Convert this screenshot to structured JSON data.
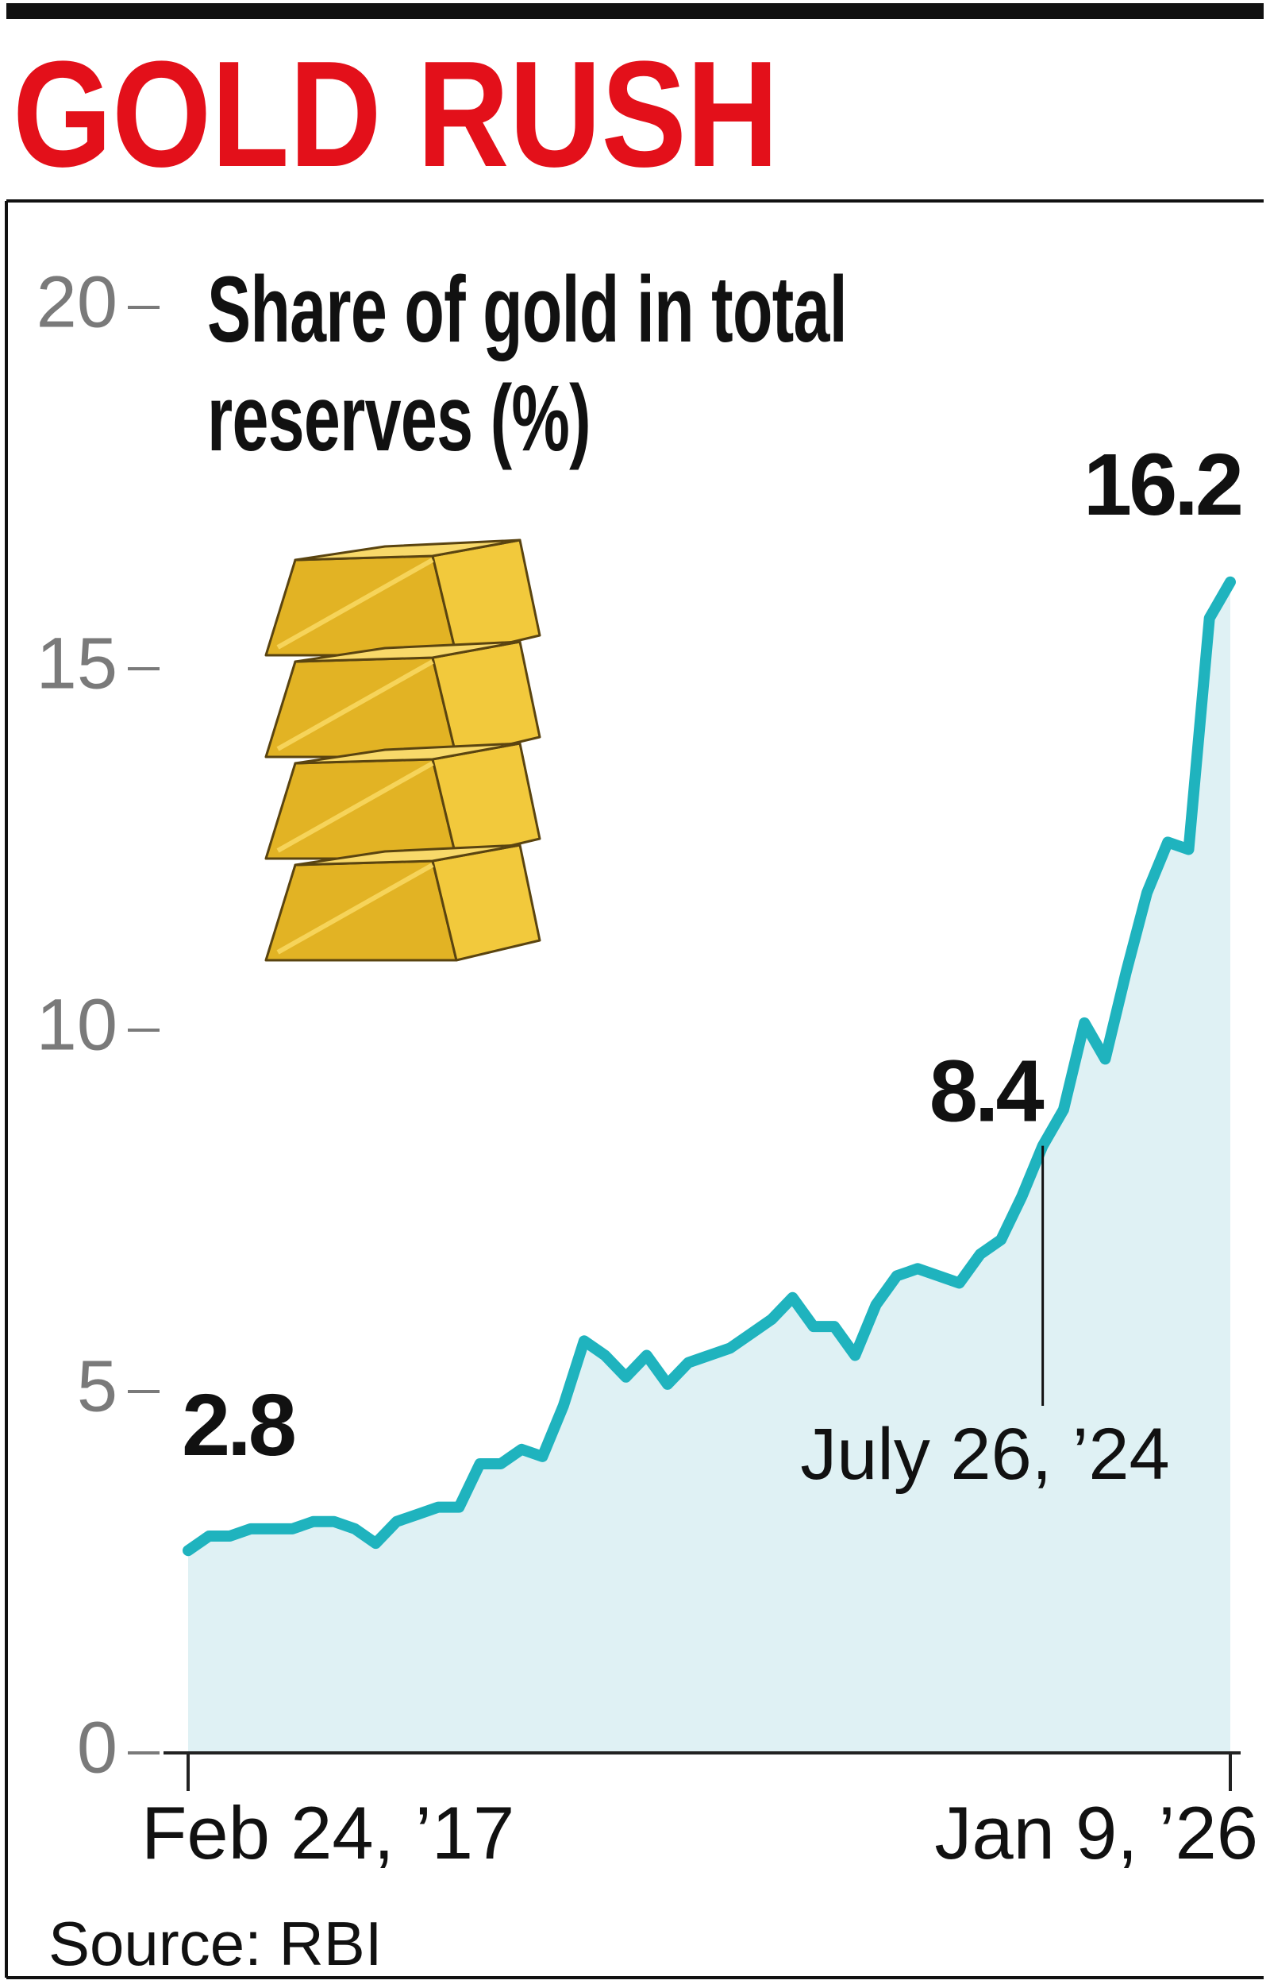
{
  "chart_data": {
    "type": "line",
    "title": "GOLD RUSH",
    "subtitle": "Share of gold in total reserves (%)",
    "source": "Source: RBI",
    "categories": [
      "Feb 24, ’17",
      null,
      null,
      null,
      null,
      null,
      null,
      null,
      null,
      null,
      null,
      null,
      null,
      null,
      null,
      null,
      null,
      null,
      null,
      null,
      null,
      null,
      null,
      null,
      null,
      null,
      null,
      null,
      null,
      null,
      null,
      null,
      null,
      null,
      null,
      null,
      null,
      null,
      null,
      null,
      null,
      "July 26, ’24",
      null,
      null,
      null,
      null,
      null,
      null,
      null,
      null,
      "Jan 9, ’26"
    ],
    "values": [
      2.8,
      3.0,
      3.0,
      3.1,
      3.1,
      3.1,
      3.2,
      3.2,
      3.1,
      2.9,
      3.2,
      3.3,
      3.4,
      3.4,
      4.0,
      4.0,
      4.2,
      4.1,
      4.8,
      5.7,
      5.5,
      5.2,
      5.5,
      5.1,
      5.4,
      5.5,
      5.6,
      5.8,
      6.0,
      6.3,
      5.9,
      5.9,
      5.5,
      6.2,
      6.6,
      6.7,
      6.6,
      6.5,
      6.9,
      7.1,
      7.7,
      8.4,
      8.9,
      10.1,
      9.6,
      10.8,
      11.9,
      12.6,
      12.5,
      15.7,
      16.2
    ],
    "color": "#1fb3be",
    "area_color": "#dff1f4",
    "ylim": [
      0,
      20
    ],
    "yticks": [
      0,
      5,
      10,
      15,
      20
    ]
  }
}
